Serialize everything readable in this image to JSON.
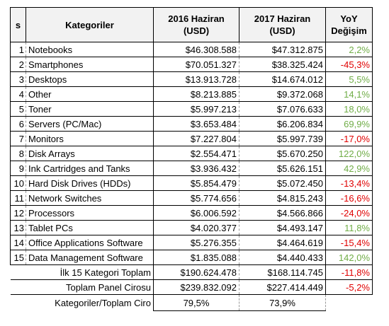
{
  "header": {
    "s": "s",
    "category": "Kategoriler",
    "y2016": "2016 Haziran\n(USD)",
    "y2017": "2017 Haziran\n(USD)",
    "yoy": "YoY\nDeğişim"
  },
  "rows": [
    [
      "1",
      "Notebooks",
      "$46.308.588",
      "$47.312.875",
      "2,2%"
    ],
    [
      "2",
      "Smartphones",
      "$70.051.327",
      "$38.325.424",
      "-45,3%"
    ],
    [
      "3",
      "Desktops",
      "$13.913.728",
      "$14.674.012",
      "5,5%"
    ],
    [
      "4",
      "Other",
      "$8.213.885",
      "$9.372.068",
      "14,1%"
    ],
    [
      "5",
      "Toner",
      "$5.997.213",
      "$7.076.633",
      "18,0%"
    ],
    [
      "6",
      "Servers (PC/Mac)",
      "$3.653.484",
      "$6.206.834",
      "69,9%"
    ],
    [
      "7",
      "Monitors",
      "$7.227.804",
      "$5.997.739",
      "-17,0%"
    ],
    [
      "8",
      "Disk Arrays",
      "$2.554.471",
      "$5.670.250",
      "122,0%"
    ],
    [
      "9",
      "Ink Cartridges and Tanks",
      "$3.936.432",
      "$5.626.151",
      "42,9%"
    ],
    [
      "10",
      "Hard Disk Drives (HDDs)",
      "$5.854.479",
      "$5.072.450",
      "-13,4%"
    ],
    [
      "11",
      "Network Switches",
      "$5.774.656",
      "$4.815.243",
      "-16,6%"
    ],
    [
      "12",
      "Processors",
      "$6.006.592",
      "$4.566.866",
      "-24,0%"
    ],
    [
      "13",
      "Tablet PCs",
      "$4.020.377",
      "$4.493.147",
      "11,8%"
    ],
    [
      "14",
      "Office Applications Software",
      "$5.276.355",
      "$4.464.619",
      "-15,4%"
    ],
    [
      "15",
      "Data Management Software",
      "$1.835.088",
      "$4.440.433",
      "142,0%"
    ]
  ],
  "summary": [
    [
      "İlk 15 Kategori Toplam",
      "$190.624.478",
      "$168.114.745",
      "-11,8%"
    ],
    [
      "Toplam Panel Cirosu",
      "$239.832.092",
      "$227.414.449",
      "-5,2%"
    ]
  ],
  "ratio": [
    "Kategoriler/Toplam Ciro",
    "79,5%",
    "73,9%"
  ]
}
